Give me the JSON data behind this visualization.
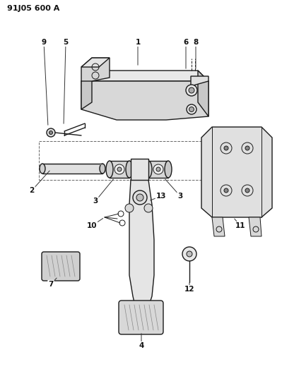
{
  "title": "91J05 600 A",
  "bg_color": "#ffffff",
  "line_color": "#1a1a1a",
  "label_color": "#111111",
  "figsize": [
    3.99,
    5.33
  ],
  "dpi": 100
}
